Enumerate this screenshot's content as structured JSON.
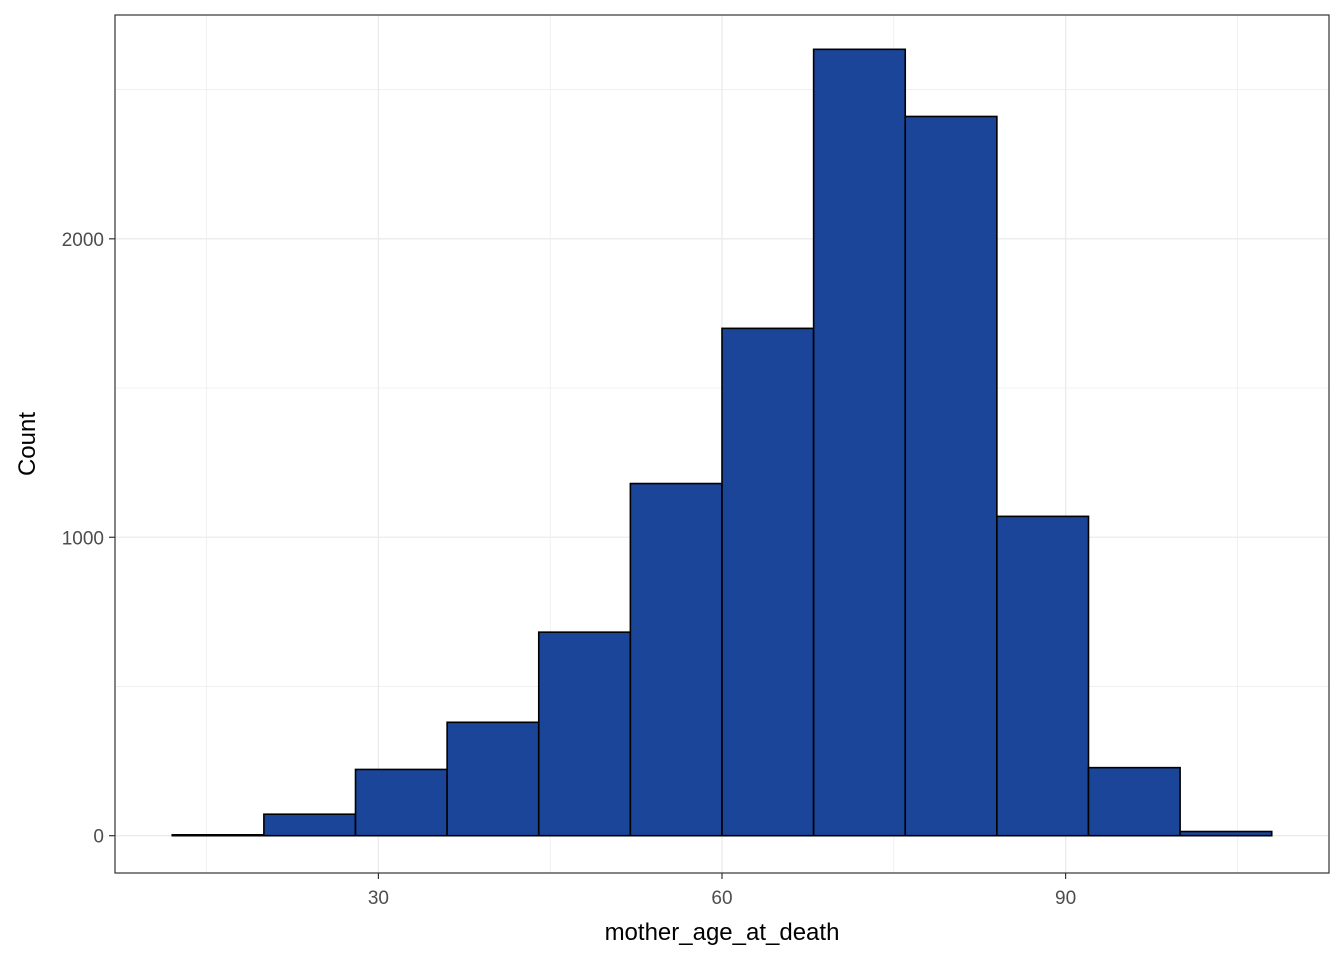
{
  "chart_data": {
    "type": "bar",
    "subtype": "histogram",
    "xlabel": "mother_age_at_death",
    "ylabel": "Count",
    "xlim": [
      7,
      113
    ],
    "ylim": [
      -125,
      2750
    ],
    "x_ticks": [
      30,
      60,
      90
    ],
    "y_ticks": [
      0,
      1000,
      2000
    ],
    "grid": true,
    "bin_width": 8,
    "bins": [
      {
        "x0": 12,
        "x1": 20,
        "count": 3
      },
      {
        "x0": 20,
        "x1": 28,
        "count": 72
      },
      {
        "x0": 28,
        "x1": 36,
        "count": 222
      },
      {
        "x0": 36,
        "x1": 44,
        "count": 380
      },
      {
        "x0": 44,
        "x1": 52,
        "count": 682
      },
      {
        "x0": 52,
        "x1": 60,
        "count": 1180
      },
      {
        "x0": 60,
        "x1": 68,
        "count": 1700
      },
      {
        "x0": 68,
        "x1": 76,
        "count": 2635
      },
      {
        "x0": 76,
        "x1": 84,
        "count": 2410
      },
      {
        "x0": 84,
        "x1": 92,
        "count": 1070
      },
      {
        "x0": 92,
        "x1": 100,
        "count": 228
      },
      {
        "x0": 100,
        "x1": 108,
        "count": 14
      }
    ],
    "colors": {
      "fill": "#1a4599",
      "stroke": "#000000",
      "grid": "#ebebeb",
      "panel_border": "#333333"
    }
  }
}
